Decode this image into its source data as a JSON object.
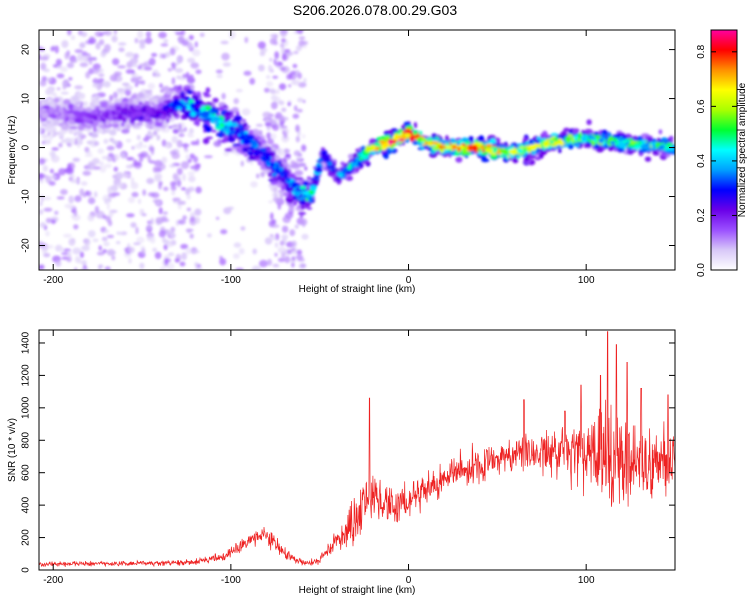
{
  "title": "S206.2026.078.00.29.G03",
  "chart_data": [
    {
      "type": "heatmap",
      "title": "S206.2026.078.00.29.G03",
      "xlabel": "Height of straight line (km)",
      "ylabel": "Frequency (Hz)",
      "xlim": [
        -208,
        150
      ],
      "ylim": [
        -25,
        24
      ],
      "xticks": [
        -200,
        -100,
        0,
        100
      ],
      "xtick_labels": [
        "-200",
        "-100",
        "0",
        "100"
      ],
      "yticks": [
        20,
        10,
        0,
        -10,
        -20
      ],
      "ytick_labels": [
        "20",
        "10",
        "0",
        "-10",
        "-20"
      ],
      "ridge": {
        "x": [
          -200,
          -180,
          -160,
          -140,
          -125,
          -110,
          -95,
          -80,
          -70,
          -62,
          -55,
          -48,
          -40,
          -30,
          -20,
          -10,
          0,
          10,
          20,
          40,
          60,
          80,
          100,
          120,
          150
        ],
        "y": [
          7,
          6,
          7,
          7,
          9,
          6,
          3,
          -2,
          -6,
          -9,
          -10,
          -1,
          -6,
          -3,
          0,
          1,
          3,
          1,
          0,
          0,
          -1,
          1,
          2,
          1,
          0
        ],
        "amplitude": [
          0.12,
          0.15,
          0.18,
          0.2,
          0.35,
          0.4,
          0.35,
          0.3,
          0.3,
          0.35,
          0.4,
          0.3,
          0.3,
          0.4,
          0.55,
          0.75,
          0.7,
          0.55,
          0.6,
          0.65,
          0.55,
          0.55,
          0.45,
          0.45,
          0.45
        ]
      },
      "colorbar": {
        "label": "Normalized spectral amplitude",
        "range": [
          0.0,
          0.88
        ],
        "ticks": [
          0.0,
          0.2,
          0.4,
          0.6,
          0.8
        ],
        "tick_labels": [
          "0.0",
          "0.2",
          "0.4",
          "0.6",
          "0.8"
        ],
        "colors": [
          "#ffffff",
          "#d8c8f8",
          "#9b50ff",
          "#6a00e8",
          "#0000ff",
          "#00a0ff",
          "#00ffff",
          "#00ff30",
          "#aaff00",
          "#ffff00",
          "#ff9000",
          "#ff0000",
          "#ff00a0"
        ]
      }
    },
    {
      "type": "line",
      "xlabel": "Height of straight line (km)",
      "ylabel": "SNR (10 * v/v)",
      "xlim": [
        -208,
        150
      ],
      "ylim": [
        0,
        1480
      ],
      "xticks": [
        -200,
        -100,
        0,
        100
      ],
      "xtick_labels": [
        "-200",
        "-100",
        "0",
        "100"
      ],
      "yticks": [
        0,
        200,
        400,
        600,
        800,
        1000,
        1200,
        1400
      ],
      "ytick_labels": [
        "0",
        "200",
        "400",
        "600",
        "800",
        "1000",
        "1200",
        "1400"
      ],
      "series": [
        {
          "name": "SNR",
          "color": "#ee2222",
          "x": [
            -208,
            -180,
            -150,
            -120,
            -105,
            -95,
            -88,
            -82,
            -78,
            -72,
            -65,
            -58,
            -50,
            -45,
            -40,
            -35,
            -30,
            -25,
            -20,
            -15,
            -10,
            -5,
            0,
            10,
            20,
            30,
            40,
            50,
            60,
            70,
            80,
            90,
            100,
            110,
            120,
            130,
            140,
            150
          ],
          "y": [
            35,
            40,
            40,
            50,
            80,
            140,
            190,
            220,
            200,
            130,
            70,
            40,
            60,
            130,
            190,
            260,
            300,
            400,
            440,
            420,
            400,
            420,
            440,
            500,
            570,
            620,
            660,
            690,
            710,
            700,
            720,
            730,
            700,
            680,
            660,
            660,
            670,
            680
          ],
          "spread": [
            15,
            15,
            15,
            20,
            30,
            40,
            50,
            60,
            60,
            40,
            25,
            20,
            30,
            60,
            90,
            130,
            150,
            170,
            160,
            140,
            120,
            120,
            110,
            110,
            110,
            110,
            110,
            110,
            120,
            130,
            150,
            200,
            260,
            320,
            300,
            260,
            230,
            220
          ],
          "peaks": [
            {
              "x": -22,
              "y": 1060
            },
            {
              "x": 65,
              "y": 1050
            },
            {
              "x": 88,
              "y": 980
            },
            {
              "x": 97,
              "y": 1140
            },
            {
              "x": 108,
              "y": 1200
            },
            {
              "x": 112,
              "y": 1470
            },
            {
              "x": 117,
              "y": 1390
            },
            {
              "x": 123,
              "y": 1280
            },
            {
              "x": 131,
              "y": 1120
            },
            {
              "x": 146,
              "y": 1080
            }
          ]
        }
      ]
    }
  ]
}
